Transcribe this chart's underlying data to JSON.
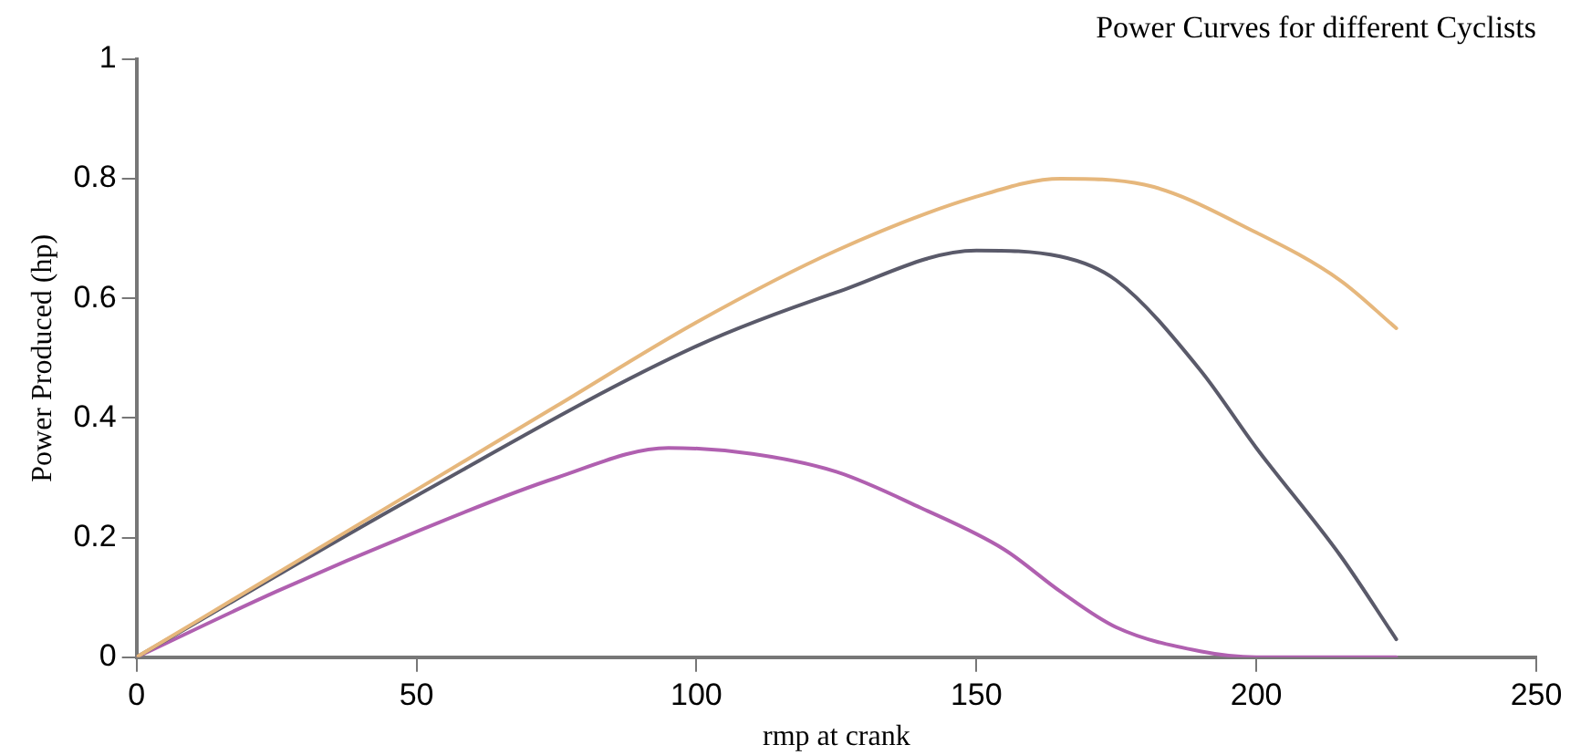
{
  "chart_data": {
    "type": "line",
    "title": "Power Curves for different Cyclists",
    "xlabel": "rmp at crank",
    "ylabel": "Power Produced (hp)",
    "xlim": [
      0,
      250
    ],
    "xticks": [
      0,
      50,
      100,
      150,
      200,
      250
    ],
    "ylim": [
      0,
      1
    ],
    "yticks": [
      0,
      0.2,
      0.4,
      0.6,
      0.8,
      1
    ],
    "grid": false,
    "legend": false,
    "marker": "none",
    "line_style": "solid",
    "series": [
      {
        "color": "#e6b77c",
        "x": [
          0,
          25,
          50,
          75,
          100,
          125,
          150,
          165,
          180,
          200,
          215,
          225
        ],
        "values": [
          0,
          0.14,
          0.28,
          0.42,
          0.56,
          0.68,
          0.77,
          0.8,
          0.79,
          0.71,
          0.63,
          0.55
        ]
      },
      {
        "color": "#5a5a6a",
        "x": [
          0,
          50,
          100,
          125,
          150,
          165,
          175,
          190,
          200,
          215,
          225
        ],
        "values": [
          0,
          0.27,
          0.52,
          0.61,
          0.68,
          0.67,
          0.63,
          0.48,
          0.35,
          0.17,
          0.03
        ]
      },
      {
        "color": "#b060b0",
        "x": [
          0,
          25,
          50,
          75,
          95,
          110,
          125,
          140,
          155,
          165,
          175,
          190,
          200,
          215,
          225
        ],
        "values": [
          0,
          0.11,
          0.21,
          0.3,
          0.35,
          0.34,
          0.31,
          0.25,
          0.18,
          0.11,
          0.05,
          0.01,
          0,
          0,
          0
        ]
      }
    ]
  }
}
